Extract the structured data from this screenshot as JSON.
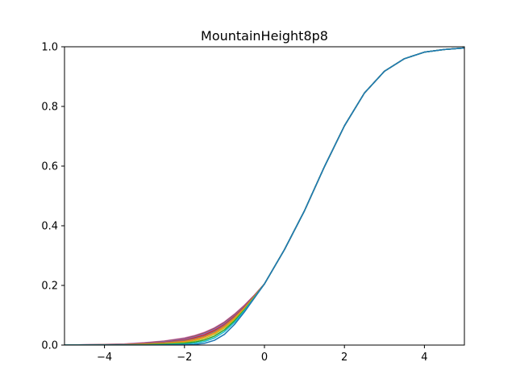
{
  "chart_data": {
    "type": "line",
    "title": "MountainHeight8p8",
    "xlabel": "",
    "ylabel": "",
    "xlim": [
      -5,
      5
    ],
    "ylim": [
      0,
      1.0
    ],
    "x_ticks": [
      -4,
      -2,
      0,
      2,
      4
    ],
    "x_tick_labels": [
      "−4",
      "−2",
      "0",
      "2",
      "4"
    ],
    "y_ticks": [
      0.0,
      0.2,
      0.4,
      0.6,
      0.8,
      1.0
    ],
    "y_tick_labels": [
      "0.0",
      "0.2",
      "0.4",
      "0.6",
      "0.8",
      "1.0"
    ],
    "grid": false,
    "legend": "none",
    "x": [
      -5,
      -4.5,
      -4,
      -3.5,
      -3,
      -2.5,
      -2,
      -1.75,
      -1.5,
      -1.25,
      -1,
      -0.75,
      -0.5,
      -0.25,
      0,
      0.5,
      1,
      1.5,
      2,
      2.5,
      3,
      3.5,
      4,
      4.5,
      5
    ],
    "series": [
      {
        "color": "#e377c2",
        "values": [
          0.0,
          0.001,
          0.002,
          0.004,
          0.008,
          0.014,
          0.024,
          0.032,
          0.043,
          0.058,
          0.078,
          0.104,
          0.134,
          0.168,
          0.205,
          0.32,
          0.45,
          0.598,
          0.735,
          0.845,
          0.918,
          0.96,
          0.982,
          0.991,
          0.996
        ]
      },
      {
        "color": "#8c564b",
        "values": [
          0.0,
          0.001,
          0.002,
          0.003,
          0.007,
          0.013,
          0.022,
          0.03,
          0.041,
          0.056,
          0.076,
          0.102,
          0.132,
          0.167,
          0.205,
          0.32,
          0.45,
          0.598,
          0.735,
          0.845,
          0.918,
          0.96,
          0.982,
          0.991,
          0.996
        ]
      },
      {
        "color": "#9467bd",
        "values": [
          0.0,
          0.001,
          0.001,
          0.003,
          0.006,
          0.011,
          0.02,
          0.027,
          0.038,
          0.053,
          0.073,
          0.099,
          0.13,
          0.166,
          0.205,
          0.32,
          0.45,
          0.598,
          0.735,
          0.845,
          0.918,
          0.96,
          0.982,
          0.991,
          0.996
        ]
      },
      {
        "color": "#d62728",
        "values": [
          0.0,
          0.0,
          0.001,
          0.002,
          0.005,
          0.009,
          0.017,
          0.024,
          0.034,
          0.049,
          0.069,
          0.096,
          0.128,
          0.165,
          0.205,
          0.32,
          0.45,
          0.598,
          0.735,
          0.845,
          0.918,
          0.96,
          0.982,
          0.991,
          0.996
        ]
      },
      {
        "color": "#7f7f7f",
        "values": [
          0.0,
          0.0,
          0.001,
          0.002,
          0.004,
          0.008,
          0.015,
          0.021,
          0.03,
          0.045,
          0.066,
          0.093,
          0.126,
          0.164,
          0.205,
          0.32,
          0.45,
          0.598,
          0.735,
          0.845,
          0.918,
          0.96,
          0.982,
          0.991,
          0.996
        ]
      },
      {
        "color": "#ff7f0e",
        "values": [
          0.0,
          0.0,
          0.0,
          0.001,
          0.003,
          0.006,
          0.012,
          0.018,
          0.027,
          0.041,
          0.062,
          0.09,
          0.124,
          0.163,
          0.205,
          0.32,
          0.45,
          0.598,
          0.735,
          0.845,
          0.918,
          0.96,
          0.982,
          0.991,
          0.996
        ]
      },
      {
        "color": "#bcbd22",
        "values": [
          0.0,
          0.0,
          0.0,
          0.001,
          0.002,
          0.004,
          0.009,
          0.014,
          0.022,
          0.036,
          0.057,
          0.086,
          0.121,
          0.162,
          0.205,
          0.32,
          0.45,
          0.598,
          0.735,
          0.845,
          0.918,
          0.96,
          0.982,
          0.991,
          0.996
        ]
      },
      {
        "color": "#2ca02c",
        "values": [
          0.0,
          0.0,
          0.0,
          0.0,
          0.001,
          0.003,
          0.006,
          0.01,
          0.017,
          0.03,
          0.051,
          0.081,
          0.118,
          0.16,
          0.205,
          0.32,
          0.45,
          0.598,
          0.735,
          0.845,
          0.918,
          0.96,
          0.982,
          0.991,
          0.996
        ]
      },
      {
        "color": "#17becf",
        "values": [
          0.0,
          0.0,
          0.0,
          0.0,
          0.0,
          0.001,
          0.003,
          0.006,
          0.012,
          0.024,
          0.045,
          0.076,
          0.115,
          0.159,
          0.205,
          0.32,
          0.45,
          0.598,
          0.735,
          0.845,
          0.918,
          0.96,
          0.982,
          0.991,
          0.996
        ]
      },
      {
        "color": "#1f77b4",
        "values": [
          0.0,
          0.0,
          0.0,
          0.0,
          0.0,
          0.0,
          0.001,
          0.002,
          0.006,
          0.016,
          0.036,
          0.069,
          0.111,
          0.158,
          0.205,
          0.32,
          0.45,
          0.598,
          0.735,
          0.845,
          0.918,
          0.96,
          0.982,
          0.991,
          0.996
        ]
      }
    ]
  }
}
